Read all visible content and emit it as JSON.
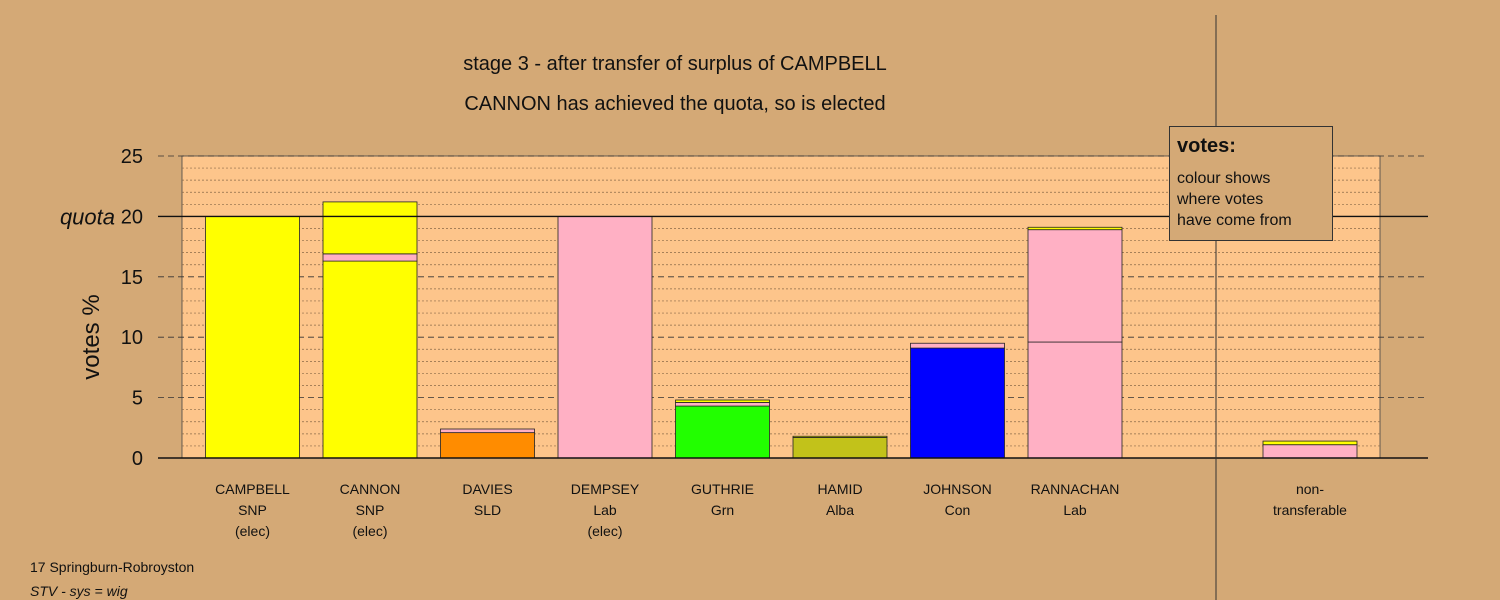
{
  "title": "stage 3 - after transfer of surplus of CAMPBELL",
  "subtitle": "CANNON has achieved the quota, so is elected",
  "footer": {
    "constituency": "17 Springburn-Robroyston",
    "system": "STV - sys = wig"
  },
  "legend": {
    "title": "votes:",
    "text": "colour shows\nwhere votes\nhave come from"
  },
  "colors": {
    "background": "#d4a976",
    "plot_area": "#fdc58b",
    "SNP": "#ffff00",
    "SLD": "#ff8c00",
    "Lab": "#ffb0c4",
    "Grn": "#22ff00",
    "Alba": "#c2c21a",
    "Con": "#0000ff",
    "nontransferable": "#ffb0c4"
  },
  "chart_data": {
    "type": "bar",
    "stacked": true,
    "ylabel": "votes %",
    "ylim": [
      0,
      25
    ],
    "yticks": [
      0,
      5,
      10,
      15,
      20,
      25
    ],
    "quota": 20,
    "quota_label": "quota",
    "grid": true,
    "categories": [
      {
        "label": [
          "CAMPBELL",
          "SNP",
          "(elec)"
        ],
        "segments": [
          {
            "party": "SNP",
            "value": 20.0
          }
        ]
      },
      {
        "label": [
          "CANNON",
          "SNP",
          "(elec)"
        ],
        "segments": [
          {
            "party": "SNP",
            "value": 16.3
          },
          {
            "party": "Lab",
            "value": 0.6
          },
          {
            "party": "SNP",
            "value": 4.3
          }
        ]
      },
      {
        "label": [
          "DAVIES",
          "SLD"
        ],
        "segments": [
          {
            "party": "SLD",
            "value": 2.1
          },
          {
            "party": "Lab",
            "value": 0.3
          }
        ]
      },
      {
        "label": [
          "DEMPSEY",
          "Lab",
          "(elec)"
        ],
        "segments": [
          {
            "party": "Lab",
            "value": 20.0
          }
        ]
      },
      {
        "label": [
          "GUTHRIE",
          "Grn"
        ],
        "segments": [
          {
            "party": "Grn",
            "value": 4.3
          },
          {
            "party": "Lab",
            "value": 0.3
          },
          {
            "party": "SNP",
            "value": 0.2
          }
        ]
      },
      {
        "label": [
          "HAMID",
          "Alba"
        ],
        "segments": [
          {
            "party": "Alba",
            "value": 1.7
          },
          {
            "party": "SNP",
            "value": 0.1
          }
        ]
      },
      {
        "label": [
          "JOHNSON",
          "Con"
        ],
        "segments": [
          {
            "party": "Con",
            "value": 9.1
          },
          {
            "party": "Lab",
            "value": 0.4
          }
        ]
      },
      {
        "label": [
          "RANNACHAN",
          "Lab"
        ],
        "segments": [
          {
            "party": "Lab",
            "value": 9.6
          },
          {
            "party": "Lab",
            "value": 9.3
          },
          {
            "party": "SNP",
            "value": 0.2
          }
        ]
      },
      {
        "label": [
          "non-",
          "transferable"
        ],
        "separate": true,
        "segments": [
          {
            "party": "nontransferable",
            "value": 1.1
          },
          {
            "party": "SNP",
            "value": 0.3
          }
        ]
      }
    ]
  }
}
